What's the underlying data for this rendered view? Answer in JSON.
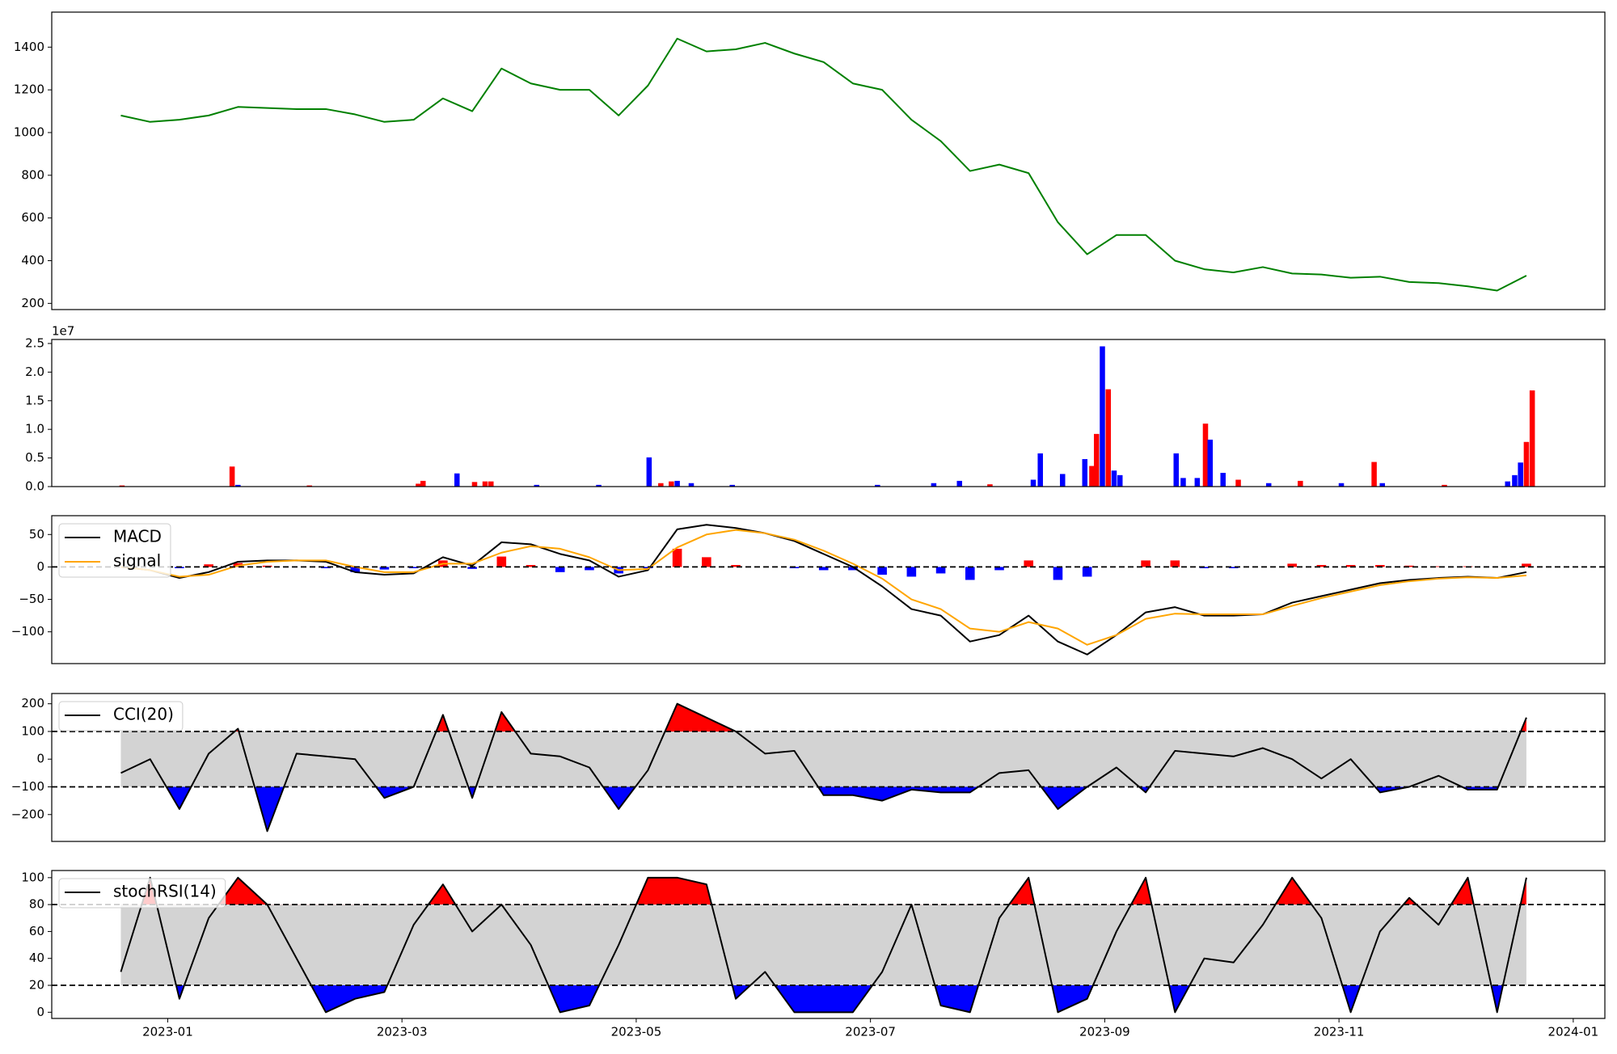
{
  "chart_data": [
    {
      "type": "line",
      "color": "#008000",
      "x": [
        -0.4,
        -0.15,
        0.1,
        0.35,
        0.6,
        0.85,
        1.1,
        1.35,
        1.6,
        1.85,
        2.1,
        2.35,
        2.6,
        2.85,
        3.1,
        3.35,
        3.6,
        3.85,
        4.1,
        4.35,
        4.6,
        4.85,
        5.1,
        5.35,
        5.6,
        5.85,
        6.1,
        6.35,
        6.6,
        6.85,
        7.1,
        7.35,
        7.6,
        7.85,
        8.1,
        8.35,
        8.6,
        8.85,
        9.1,
        9.35,
        9.6,
        9.85,
        10.1,
        10.35,
        10.6,
        10.85,
        11.1,
        11.35,
        11.6
      ],
      "values": [
        1080,
        1050,
        1060,
        1080,
        1120,
        1115,
        1110,
        1110,
        1085,
        1050,
        1060,
        1160,
        1100,
        1300,
        1230,
        1200,
        1200,
        1080,
        1220,
        1440,
        1380,
        1390,
        1420,
        1370,
        1330,
        1230,
        1200,
        1060,
        960,
        820,
        850,
        810,
        580,
        430,
        520,
        520,
        400,
        360,
        345,
        370,
        340,
        335,
        320,
        325,
        300,
        295,
        280,
        260,
        330
      ],
      "xlim": [
        -0.99,
        12.27
      ],
      "ylim": [
        171,
        1564
      ],
      "yticks": [
        200,
        400,
        600,
        800,
        1000,
        1200,
        1400
      ]
    },
    {
      "type": "bar",
      "offset_label": "1e7",
      "x": [
        -0.39,
        0.55,
        0.6,
        1.21,
        2.14,
        2.18,
        2.47,
        2.62,
        2.71,
        2.76,
        3.15,
        3.68,
        4.11,
        4.21,
        4.3,
        4.35,
        4.47,
        4.82,
        6.06,
        6.54,
        6.76,
        7.02,
        7.39,
        7.45,
        7.64,
        7.83,
        7.89,
        7.93,
        7.98,
        8.03,
        8.08,
        8.13,
        8.61,
        8.67,
        8.79,
        8.86,
        8.9,
        9.01,
        9.14,
        9.4,
        9.67,
        10.02,
        10.3,
        10.37,
        10.9,
        11.44,
        11.5,
        11.55,
        11.6,
        11.65
      ],
      "values": [
        200000,
        3500000,
        300000,
        200000,
        500000,
        1000000,
        2300000,
        800000,
        900000,
        900000,
        300000,
        300000,
        5100000,
        600000,
        900000,
        1000000,
        600000,
        300000,
        300000,
        600000,
        1000000,
        400000,
        1200000,
        5800000,
        2200000,
        4800000,
        3600000,
        9200000,
        24500000,
        17000000,
        2800000,
        2000000,
        5800000,
        1500000,
        1500000,
        11000000,
        8200000,
        2400000,
        1200000,
        600000,
        1000000,
        600000,
        4300000,
        600000,
        300000,
        900000,
        2000000,
        4200000,
        7800000,
        16800000
      ],
      "colors": [
        "red",
        "red",
        "blue",
        "red",
        "red",
        "red",
        "blue",
        "red",
        "red",
        "red",
        "blue",
        "blue",
        "blue",
        "red",
        "red",
        "blue",
        "blue",
        "blue",
        "blue",
        "blue",
        "blue",
        "red",
        "blue",
        "blue",
        "blue",
        "blue",
        "red",
        "red",
        "blue",
        "red",
        "blue",
        "blue",
        "blue",
        "blue",
        "blue",
        "red",
        "blue",
        "blue",
        "red",
        "blue",
        "red",
        "blue",
        "red",
        "blue",
        "red",
        "blue",
        "blue",
        "blue",
        "red",
        "red"
      ],
      "xlim": [
        -0.99,
        12.27
      ],
      "ylim": [
        0,
        25700000
      ],
      "yticks": [
        {
          "value": 0,
          "label": "0.0"
        },
        {
          "value": 5000000,
          "label": "0.5"
        },
        {
          "value": 10000000,
          "label": "1.0"
        },
        {
          "value": 15000000,
          "label": "1.5"
        },
        {
          "value": 20000000,
          "label": "2.0"
        },
        {
          "value": 25000000,
          "label": "2.5"
        }
      ]
    },
    {
      "type": "macd",
      "legend": "upper left",
      "hlines": [
        0
      ],
      "x": [
        -0.4,
        -0.15,
        0.1,
        0.35,
        0.6,
        0.85,
        1.1,
        1.35,
        1.6,
        1.85,
        2.1,
        2.35,
        2.6,
        2.85,
        3.1,
        3.35,
        3.6,
        3.85,
        4.1,
        4.35,
        4.6,
        4.85,
        5.1,
        5.35,
        5.6,
        5.85,
        6.1,
        6.35,
        6.6,
        6.85,
        7.1,
        7.35,
        7.6,
        7.85,
        8.1,
        8.35,
        8.6,
        8.85,
        9.1,
        9.35,
        9.6,
        9.85,
        10.1,
        10.35,
        10.6,
        10.85,
        11.1,
        11.35,
        11.6
      ],
      "series": [
        {
          "name": "MACD",
          "color": "#000000",
          "values": [
            0,
            -5,
            -17,
            -8,
            8,
            10,
            10,
            8,
            -8,
            -12,
            -10,
            15,
            2,
            38,
            35,
            20,
            10,
            -15,
            -5,
            58,
            65,
            60,
            52,
            40,
            20,
            0,
            -30,
            -65,
            -75,
            -115,
            -105,
            -75,
            -115,
            -135,
            -105,
            -70,
            -62,
            -75,
            -75,
            -73,
            -55,
            -45,
            -35,
            -25,
            -20,
            -17,
            -15,
            -17,
            -8
          ]
        },
        {
          "name": "signal",
          "color": "#ffa500",
          "values": [
            0,
            -5,
            -15,
            -12,
            2,
            8,
            10,
            10,
            0,
            -8,
            -8,
            5,
            5,
            22,
            32,
            28,
            15,
            -5,
            -3,
            30,
            50,
            57,
            52,
            42,
            25,
            5,
            -18,
            -50,
            -65,
            -95,
            -100,
            -85,
            -95,
            -120,
            -105,
            -80,
            -72,
            -73,
            -73,
            -73,
            -60,
            -48,
            -38,
            -28,
            -22,
            -18,
            -16,
            -17,
            -13
          ]
        }
      ],
      "histogram": {
        "up_color": "red",
        "down_color": "blue",
        "values": [
          0,
          0,
          -2,
          4,
          6,
          2,
          0,
          -2,
          -8,
          -4,
          -2,
          10,
          -3,
          16,
          3,
          -8,
          -5,
          -10,
          -2,
          28,
          15,
          3,
          0,
          -2,
          -5,
          -5,
          -12,
          -15,
          -10,
          -20,
          -5,
          10,
          -20,
          -15,
          0,
          10,
          10,
          -2,
          -2,
          0,
          5,
          3,
          3,
          3,
          2,
          1,
          1,
          0,
          5
        ]
      },
      "xlim": [
        -0.99,
        12.27
      ],
      "ylim": [
        -149,
        79
      ],
      "yticks": [
        {
          "value": -100,
          "label": "−100"
        },
        {
          "value": -50,
          "label": "−50"
        },
        0,
        50
      ]
    },
    {
      "type": "oscillator",
      "legend": "upper left",
      "upper": 100,
      "lower": -100,
      "band_color": "#d3d3d3",
      "upper_color": "red",
      "lower_color": "blue",
      "x": [
        -0.4,
        -0.15,
        0.1,
        0.35,
        0.6,
        0.85,
        1.1,
        1.35,
        1.6,
        1.85,
        2.1,
        2.35,
        2.6,
        2.85,
        3.1,
        3.35,
        3.6,
        3.85,
        4.1,
        4.35,
        4.6,
        4.85,
        5.1,
        5.35,
        5.6,
        5.85,
        6.1,
        6.35,
        6.6,
        6.85,
        7.1,
        7.35,
        7.6,
        7.85,
        8.1,
        8.35,
        8.6,
        8.85,
        9.1,
        9.35,
        9.6,
        9.85,
        10.1,
        10.35,
        10.6,
        10.85,
        11.1,
        11.35,
        11.6
      ],
      "series": [
        {
          "name": "CCI(20)",
          "color": "#000000",
          "values": [
            -50,
            0,
            -180,
            20,
            110,
            -260,
            20,
            10,
            0,
            -140,
            -100,
            160,
            -140,
            170,
            20,
            10,
            -30,
            -180,
            -40,
            200,
            150,
            100,
            20,
            30,
            -130,
            -130,
            -150,
            -110,
            -120,
            -120,
            -50,
            -40,
            -180,
            -100,
            -30,
            -120,
            30,
            20,
            10,
            40,
            0,
            -70,
            0,
            -120,
            -100,
            -60,
            -110,
            -110,
            150
          ]
        }
      ],
      "xlim": [
        -0.99,
        12.27
      ],
      "ylim": [
        -297,
        237
      ],
      "yticks": [
        {
          "value": -200,
          "label": "−200"
        },
        {
          "value": -100,
          "label": "−100"
        },
        0,
        100,
        200
      ]
    },
    {
      "type": "oscillator",
      "legend": "upper left",
      "upper": 80,
      "lower": 20,
      "band_color": "#d3d3d3",
      "upper_color": "red",
      "lower_color": "blue",
      "x": [
        -0.4,
        -0.15,
        0.1,
        0.35,
        0.6,
        0.85,
        1.1,
        1.35,
        1.6,
        1.85,
        2.1,
        2.35,
        2.6,
        2.85,
        3.1,
        3.35,
        3.6,
        3.85,
        4.1,
        4.35,
        4.6,
        4.85,
        5.1,
        5.35,
        5.6,
        5.85,
        6.1,
        6.35,
        6.6,
        6.85,
        7.1,
        7.35,
        7.6,
        7.85,
        8.1,
        8.35,
        8.6,
        8.85,
        9.1,
        9.35,
        9.6,
        9.85,
        10.1,
        10.35,
        10.6,
        10.85,
        11.1,
        11.35,
        11.6
      ],
      "series": [
        {
          "name": "stochRSI(14)",
          "color": "#000000",
          "values": [
            30,
            100,
            10,
            70,
            100,
            80,
            40,
            0,
            10,
            15,
            65,
            95,
            60,
            80,
            50,
            0,
            5,
            50,
            100,
            100,
            95,
            10,
            30,
            0,
            0,
            0,
            30,
            80,
            5,
            0,
            70,
            100,
            0,
            10,
            60,
            100,
            0,
            40,
            37,
            65,
            100,
            70,
            0,
            60,
            85,
            65,
            100,
            0,
            100
          ]
        }
      ],
      "xlim": [
        -0.99,
        12.27
      ],
      "ylim": [
        -4.6,
        105.3
      ],
      "yticks": [
        0,
        20,
        40,
        60,
        80,
        100
      ],
      "xticks": [
        {
          "value": 0,
          "label": "2023-01"
        },
        {
          "value": 2,
          "label": "2023-03"
        },
        {
          "value": 4,
          "label": "2023-05"
        },
        {
          "value": 6,
          "label": "2023-07"
        },
        {
          "value": 8,
          "label": "2023-09"
        },
        {
          "value": 10,
          "label": "2023-11"
        },
        {
          "value": 12,
          "label": "2024-01"
        }
      ]
    }
  ]
}
